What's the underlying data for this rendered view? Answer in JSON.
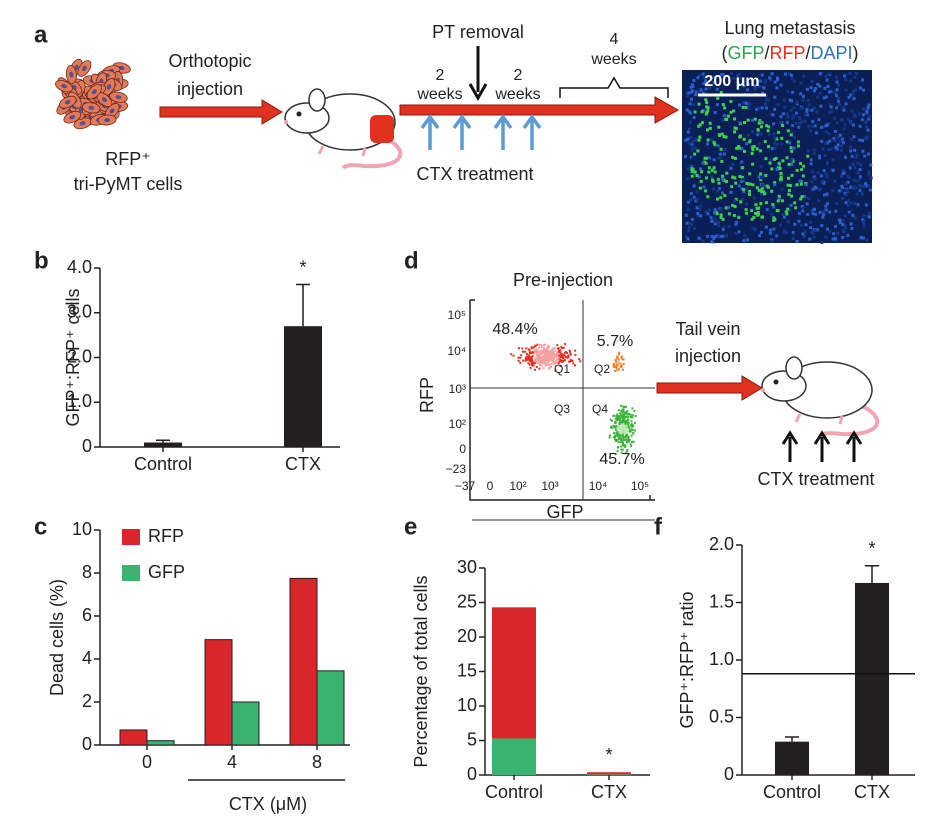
{
  "panel_a": {
    "label": "a",
    "cells_label": [
      "RFP⁺",
      "tri-PyMT cells"
    ],
    "injection_label": [
      "Orthotopic",
      "injection"
    ],
    "pt_removal": "PT removal",
    "weeks_1": [
      "2",
      "weeks"
    ],
    "weeks_2": [
      "2",
      "weeks"
    ],
    "weeks_3": [
      "4",
      "weeks"
    ],
    "ctx_treatment": "CTX treatment",
    "image_title": "Lung metastasis",
    "image_legend": [
      "(",
      "GFP",
      "/",
      "RFP",
      "/",
      "DAPI",
      ")"
    ],
    "scale_bar": "200 μm"
  },
  "panel_d": {
    "label": "d",
    "flow_title": "Pre-injection",
    "quadrant_percentages": [
      "48.4%",
      "5.7%",
      "45.7%"
    ],
    "quadrants": [
      "Q1",
      "Q2",
      "Q3",
      "Q4"
    ],
    "y_label": "RFP",
    "x_label": "GFP",
    "yticks": [
      "10⁵",
      "10⁴",
      "10³",
      "10²",
      "0",
      "−23"
    ],
    "xticks": [
      "−37",
      "0",
      "10²",
      "10³",
      "10⁴",
      "10⁵"
    ],
    "injection_label": [
      "Tail vein",
      "injection"
    ],
    "ctx_treatment": "CTX treatment"
  },
  "chart_data": [
    {
      "panel_label": "b",
      "type": "bar",
      "y_label": "GFP⁺:RFP⁺ cells",
      "categories": [
        "Control",
        "CTX"
      ],
      "values": [
        0.1,
        2.7
      ],
      "errors": [
        0.05,
        0.93
      ],
      "color": "#231f20",
      "ylim": [
        0,
        4
      ],
      "yticks": [
        0,
        {
          "value": 1,
          "label": "1.0"
        },
        {
          "value": 2,
          "label": "2.0"
        },
        {
          "value": 3,
          "label": "3.0"
        },
        {
          "value": 4,
          "label": "4.0"
        }
      ],
      "star_labels": [
        null,
        "*"
      ]
    },
    {
      "panel_label": "c",
      "type": "bar",
      "y_label": "Dead cells (%)",
      "x_label": "CTX (μM)",
      "categories": [
        "0",
        "4",
        "8"
      ],
      "series": [
        {
          "name": "RFP",
          "color": "#d9262b",
          "values": [
            0.7,
            4.9,
            7.75
          ]
        },
        {
          "name": "GFP",
          "color": "#3ab371",
          "values": [
            0.2,
            2.0,
            3.45
          ]
        }
      ],
      "ylim": [
        0,
        10
      ],
      "yticks": [
        0,
        2,
        4,
        6,
        8,
        10
      ],
      "legend": "upper left"
    },
    {
      "panel_label": "e",
      "type": "bar",
      "stacked": true,
      "y_label": "Percentage of total cells",
      "categories": [
        "Control",
        "CTX"
      ],
      "series": [
        {
          "color": "#3ab371",
          "values": [
            5.3,
            0.1
          ]
        },
        {
          "color": "#d9262b",
          "values": [
            19,
            0.3
          ]
        }
      ],
      "ylim": [
        0,
        30
      ],
      "yticks": [
        0,
        5,
        10,
        15,
        20,
        25,
        30
      ],
      "star_labels": [
        null,
        "*"
      ]
    },
    {
      "panel_label": "f",
      "type": "bar",
      "y_label": "GFP⁺:RFP⁺ ratio",
      "categories": [
        "Control",
        "CTX"
      ],
      "values": [
        0.29,
        1.67
      ],
      "errors": [
        0.04,
        0.15
      ],
      "color": "#231f20",
      "ylim": [
        0,
        2
      ],
      "yticks": [
        0,
        0.5,
        {
          "value": 1,
          "label": "1.0"
        },
        1.5,
        {
          "value": 2,
          "label": "2.0"
        }
      ],
      "hline": 0.88,
      "star_labels": [
        null,
        "*"
      ]
    }
  ]
}
